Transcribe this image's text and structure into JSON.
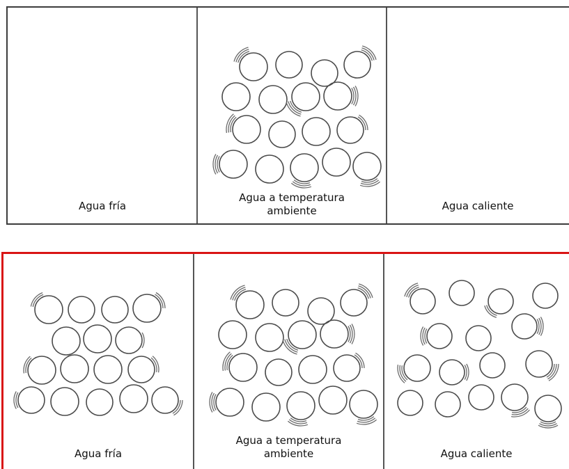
{
  "top_row": {
    "labels": {
      "cold": "Agua fría",
      "room": "Agua a temperatura ambiente",
      "hot": "Agua caliente"
    }
  },
  "bottom_row": {
    "labels": {
      "cold": "Agua fría",
      "room": "Agua a temperatura ambiente",
      "hot": "Agua caliente"
    }
  },
  "colors": {
    "highlight_border": "#d91414",
    "frame_border": "#3c3c3c",
    "particle_stroke": "#4a4a4a"
  }
}
